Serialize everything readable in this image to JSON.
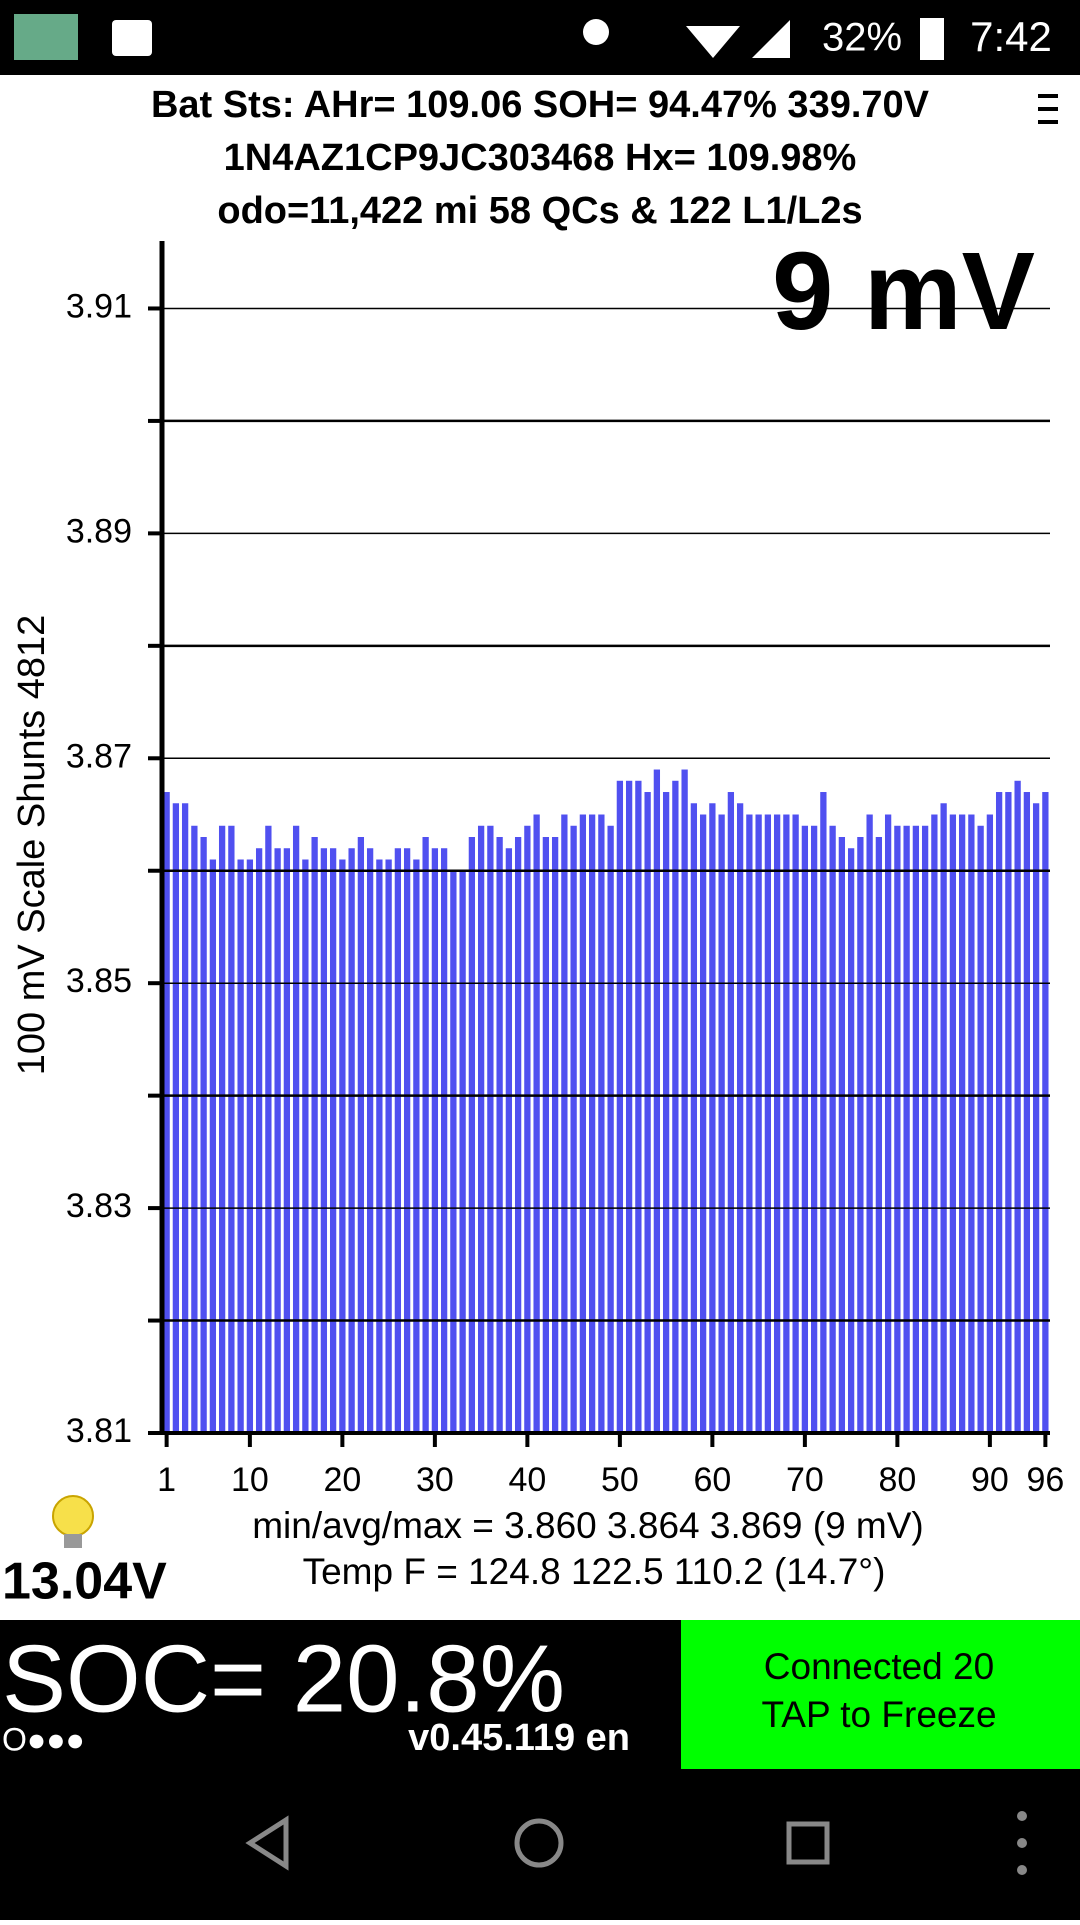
{
  "status_bar": {
    "battery": "32%",
    "time": "7:42"
  },
  "header": {
    "line1": "Bat Sts: AHr= 109.06 SOH= 94.47% 339.70V",
    "line2": "1N4AZ1CP9JC303468   Hx= 109.98%",
    "line3": "odo=11,422 mi 58 QCs & 122 L1/L2s"
  },
  "chart_data": {
    "type": "bar",
    "annotation": "9 mV",
    "ylabel": "100 mV Scale   Shunts 4812",
    "color": "#5050f0",
    "x": [
      1,
      2,
      3,
      4,
      5,
      6,
      7,
      8,
      9,
      10,
      11,
      12,
      13,
      14,
      15,
      16,
      17,
      18,
      19,
      20,
      21,
      22,
      23,
      24,
      25,
      26,
      27,
      28,
      29,
      30,
      31,
      32,
      33,
      34,
      35,
      36,
      37,
      38,
      39,
      40,
      41,
      42,
      43,
      44,
      45,
      46,
      47,
      48,
      49,
      50,
      51,
      52,
      53,
      54,
      55,
      56,
      57,
      58,
      59,
      60,
      61,
      62,
      63,
      64,
      65,
      66,
      67,
      68,
      69,
      70,
      71,
      72,
      73,
      74,
      75,
      76,
      77,
      78,
      79,
      80,
      81,
      82,
      83,
      84,
      85,
      86,
      87,
      88,
      89,
      90,
      91,
      92,
      93,
      94,
      95,
      96
    ],
    "values": [
      3.867,
      3.866,
      3.866,
      3.864,
      3.863,
      3.861,
      3.864,
      3.864,
      3.861,
      3.861,
      3.862,
      3.864,
      3.862,
      3.862,
      3.864,
      3.861,
      3.863,
      3.862,
      3.862,
      3.861,
      3.862,
      3.863,
      3.862,
      3.861,
      3.861,
      3.862,
      3.862,
      3.861,
      3.863,
      3.862,
      3.862,
      3.86,
      3.86,
      3.863,
      3.864,
      3.864,
      3.863,
      3.862,
      3.863,
      3.864,
      3.865,
      3.863,
      3.863,
      3.865,
      3.864,
      3.865,
      3.865,
      3.865,
      3.864,
      3.868,
      3.868,
      3.868,
      3.867,
      3.869,
      3.867,
      3.868,
      3.869,
      3.866,
      3.865,
      3.866,
      3.865,
      3.867,
      3.866,
      3.865,
      3.865,
      3.865,
      3.865,
      3.865,
      3.865,
      3.864,
      3.864,
      3.867,
      3.864,
      3.863,
      3.862,
      3.863,
      3.865,
      3.863,
      3.865,
      3.864,
      3.864,
      3.864,
      3.864,
      3.865,
      3.866,
      3.865,
      3.865,
      3.865,
      3.864,
      3.865,
      3.867,
      3.867,
      3.868,
      3.867,
      3.866,
      3.867
    ],
    "xlim": [
      0.5,
      96.5
    ],
    "xticks": [
      1,
      10,
      20,
      30,
      40,
      50,
      60,
      70,
      80,
      90,
      96
    ],
    "ylim": [
      3.81,
      3.916
    ],
    "yticks": [
      3.81,
      3.83,
      3.85,
      3.87,
      3.89,
      3.91
    ],
    "minor_yticks": [
      3.82,
      3.84,
      3.86,
      3.88,
      3.9
    ],
    "grid": true
  },
  "footer": {
    "stats": "min/avg/max = 3.860 3.864 3.869  (9 mV)",
    "temp": "Temp F = 124.8  122.5  110.2  (14.7°)",
    "aux_voltage": "13.04V",
    "soc": "SOC= 20.8%",
    "dots": "O●●●",
    "version": "v0.45.119 en",
    "status1": "Connected 20",
    "status2": "TAP to Freeze"
  }
}
